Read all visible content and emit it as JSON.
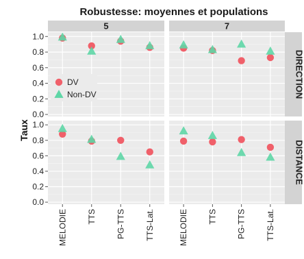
{
  "chart_data": {
    "type": "scatter",
    "title": "Robustesse: moyennes et populations",
    "ylabel": "Taux",
    "categories": [
      "MELODIE",
      "TTS",
      "PG-TTS",
      "TTS-Lat."
    ],
    "ylim": [
      0,
      1
    ],
    "yticks": [
      "0.0",
      "0.2",
      "0.4",
      "0.6",
      "0.8",
      "1.0"
    ],
    "column_facets": [
      "5",
      "7"
    ],
    "row_facets": [
      "DIRECTION",
      "DISTANCE"
    ],
    "legend": {
      "position": "inside-left",
      "entries": [
        "DV",
        "Non-DV"
      ]
    },
    "colors": {
      "DV": "#f0606a",
      "Non-DV": "#5ed6a6",
      "panel": "#ebebeb",
      "strip": "#d3d3d3",
      "grid": "#ffffff"
    },
    "panels": [
      {
        "column": "5",
        "row": "DIRECTION",
        "series": [
          {
            "name": "DV",
            "values": [
              0.98,
              0.88,
              0.94,
              0.86
            ]
          },
          {
            "name": "Non-DV",
            "values": [
              0.99,
              0.81,
              0.96,
              0.88
            ]
          }
        ]
      },
      {
        "column": "7",
        "row": "DIRECTION",
        "series": [
          {
            "name": "DV",
            "values": [
              0.85,
              0.82,
              0.69,
              0.73
            ]
          },
          {
            "name": "Non-DV",
            "values": [
              0.89,
              0.83,
              0.9,
              0.81
            ]
          }
        ]
      },
      {
        "column": "5",
        "row": "DISTANCE",
        "series": [
          {
            "name": "DV",
            "values": [
              0.88,
              0.79,
              0.8,
              0.65
            ]
          },
          {
            "name": "Non-DV",
            "values": [
              0.95,
              0.81,
              0.59,
              0.48
            ]
          }
        ]
      },
      {
        "column": "7",
        "row": "DISTANCE",
        "series": [
          {
            "name": "DV",
            "values": [
              0.79,
              0.78,
              0.81,
              0.71
            ]
          },
          {
            "name": "Non-DV",
            "values": [
              0.92,
              0.86,
              0.64,
              0.58
            ]
          }
        ]
      }
    ]
  }
}
